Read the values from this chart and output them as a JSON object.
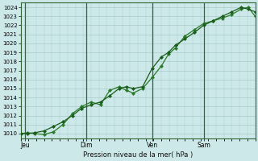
{
  "xlabel": "Pression niveau de la mer( hPa )",
  "ylim": [
    1009.5,
    1024.5
  ],
  "yticks": [
    1010,
    1011,
    1012,
    1013,
    1014,
    1015,
    1016,
    1017,
    1018,
    1019,
    1020,
    1021,
    1022,
    1023,
    1024
  ],
  "xtick_labels": [
    "Jeu",
    "Dim",
    "Ven",
    "Sam"
  ],
  "xtick_positions": [
    0.02,
    0.28,
    0.56,
    0.78
  ],
  "bg_color": "#cce8e8",
  "grid_color": "#aacccc",
  "line_color1": "#1a5c1a",
  "line_color2": "#2a7a2a",
  "vline_color": "#336633",
  "vline_positions": [
    0.02,
    0.28,
    0.56,
    0.78
  ],
  "series1_x": [
    0.0,
    0.03,
    0.06,
    0.1,
    0.14,
    0.18,
    0.22,
    0.26,
    0.3,
    0.34,
    0.38,
    0.42,
    0.45,
    0.48,
    0.52,
    0.56,
    0.6,
    0.63,
    0.66,
    0.7,
    0.74,
    0.78,
    0.82,
    0.86,
    0.9,
    0.94,
    0.97,
    1.0
  ],
  "series1_y": [
    1010.0,
    1010.0,
    1010.1,
    1010.3,
    1010.8,
    1011.3,
    1012.0,
    1012.8,
    1013.2,
    1013.5,
    1014.2,
    1015.0,
    1015.2,
    1015.0,
    1015.2,
    1017.2,
    1018.5,
    1019.0,
    1019.8,
    1020.5,
    1021.2,
    1022.0,
    1022.5,
    1023.0,
    1023.5,
    1024.0,
    1023.8,
    1023.5
  ],
  "series2_x": [
    0.0,
    0.03,
    0.06,
    0.1,
    0.14,
    0.18,
    0.22,
    0.26,
    0.3,
    0.34,
    0.38,
    0.42,
    0.45,
    0.48,
    0.52,
    0.56,
    0.6,
    0.63,
    0.66,
    0.7,
    0.74,
    0.78,
    0.82,
    0.86,
    0.9,
    0.94,
    0.97,
    1.0
  ],
  "series2_y": [
    1010.0,
    1010.1,
    1010.0,
    1009.9,
    1010.2,
    1011.0,
    1012.2,
    1013.0,
    1013.5,
    1013.2,
    1014.8,
    1015.2,
    1014.8,
    1014.5,
    1015.0,
    1016.2,
    1017.5,
    1018.8,
    1019.5,
    1020.8,
    1021.5,
    1022.2,
    1022.5,
    1022.8,
    1023.2,
    1023.8,
    1024.0,
    1023.0
  ]
}
